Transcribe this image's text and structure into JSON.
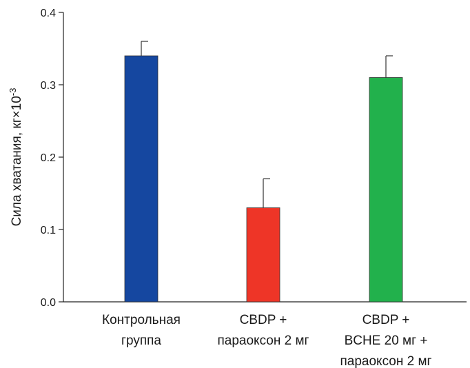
{
  "chart_data": {
    "type": "bar",
    "ylabel": "Сила хватания, кг",
    "ylabel_unit_base": "×10",
    "ylabel_unit_exp": "-3",
    "ylim": [
      0,
      0.4
    ],
    "yticks": [
      "0.0",
      "0.1",
      "0.2",
      "0.3",
      "0.4"
    ],
    "categories": [
      [
        "Контрольная",
        "группа"
      ],
      [
        "CBDP +",
        "параоксон 2 мг"
      ],
      [
        "CBDP +",
        "BCHE 20 мг +",
        "параоксон 2 мг"
      ]
    ],
    "values": [
      0.34,
      0.13,
      0.31
    ],
    "errors": [
      0.02,
      0.04,
      0.03
    ],
    "colors": [
      "#1547a0",
      "#ee3527",
      "#22b14c"
    ],
    "grid": false
  }
}
